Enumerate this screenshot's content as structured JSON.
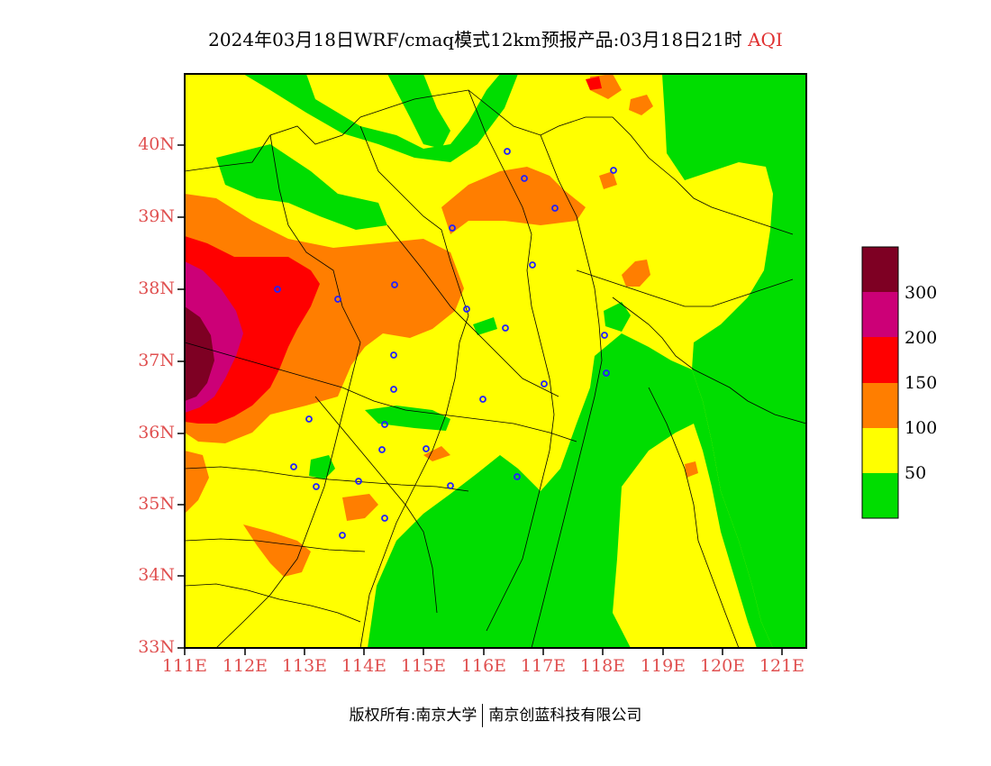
{
  "title": {
    "main": "2024年03月18日WRF/cmaq模式12km预报产品:03月18日21时",
    "tag": "AQI"
  },
  "map": {
    "lat_ticks": [
      "40N",
      "39N",
      "38N",
      "37N",
      "36N",
      "35N",
      "34N",
      "33N"
    ],
    "lon_ticks": [
      "111E",
      "112E",
      "113E",
      "114E",
      "115E",
      "116E",
      "117E",
      "118E",
      "119E",
      "120E",
      "121E"
    ],
    "lon_range": [
      111,
      121.4
    ],
    "lat_range": [
      33,
      41
    ]
  },
  "legend": {
    "labels": [
      "300",
      "200",
      "150",
      "100",
      "50"
    ],
    "colors": {
      "good": "#00dd00",
      "moderate": "#ffff00",
      "unhealthy_sensitive": "#ff7e00",
      "unhealthy": "#ff0000",
      "very_unhealthy": "#cc0077",
      "hazardous": "#7e0023"
    }
  },
  "footer": {
    "left": "版权所有:南京大学",
    "right": "南京创蓝科技有限公司"
  }
}
